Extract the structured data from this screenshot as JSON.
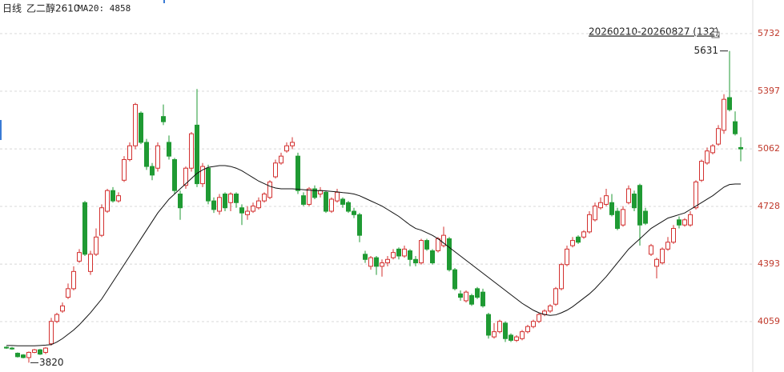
{
  "chart_data": {
    "type": "candlestick",
    "period": "日线",
    "symbol": "乙二醇2610",
    "indicator": "MA20: 4858",
    "range_label": "20260210-20260827 (132)",
    "up_color": "#d3302f",
    "down_color": "#1f9a33",
    "ma_color": "#111111",
    "ylim": [
      3766,
      5927
    ],
    "yticks": [
      4059,
      4393,
      4728,
      5062,
      5397,
      5732
    ],
    "grid": true,
    "max_index": 129,
    "min_index": 4,
    "open": [
      3910,
      3905,
      3875,
      3865,
      3850,
      3880,
      3895,
      3880,
      3930,
      4060,
      4120,
      4200,
      4250,
      4410,
      4750,
      4350,
      4450,
      4560,
      4700,
      4820,
      4760,
      4880,
      5000,
      5080,
      5270,
      5100,
      4960,
      4950,
      5250,
      5100,
      5000,
      4800,
      4850,
      4950,
      5200,
      4860,
      4950,
      4760,
      4700,
      4800,
      4750,
      4800,
      4720,
      4680,
      4700,
      4720,
      4760,
      4780,
      4900,
      4980,
      5050,
      5080,
      5020,
      4790,
      4740,
      4830,
      4800,
      4810,
      4700,
      4760,
      4770,
      4750,
      4700,
      4680,
      4450,
      4380,
      4430,
      4380,
      4400,
      4430,
      4480,
      4440,
      4470,
      4420,
      4400,
      4530,
      4470,
      4470,
      4500,
      4540,
      4360,
      4220,
      4180,
      4210,
      4250,
      4230,
      4100,
      3970,
      4000,
      4050,
      3980,
      3950,
      3960,
      4000,
      4030,
      4060,
      4100,
      4120,
      4160,
      4250,
      4390,
      4500,
      4550,
      4550,
      4580,
      4650,
      4720,
      4740,
      4750,
      4700,
      4620,
      4750,
      4800,
      4850,
      4700,
      4450,
      4380,
      4400,
      4480,
      4520,
      4650,
      4620,
      4620,
      4720,
      4880,
      4980,
      5040,
      5090,
      5170,
      5360,
      5220,
      5070
    ],
    "high": [
      3915,
      3912,
      3880,
      3870,
      3885,
      3900,
      3900,
      3910,
      4080,
      4110,
      4170,
      4280,
      4380,
      4480,
      4760,
      4470,
      4600,
      4740,
      4830,
      4840,
      4810,
      5020,
      5100,
      5330,
      5280,
      5120,
      4980,
      5100,
      5320,
      5140,
      5010,
      4820,
      4960,
      5160,
      5410,
      4980,
      4970,
      4780,
      4800,
      4810,
      4810,
      4810,
      4740,
      4730,
      4750,
      4780,
      4810,
      4880,
      5000,
      5040,
      5100,
      5130,
      5040,
      4810,
      4840,
      4850,
      4840,
      4820,
      4780,
      4830,
      4780,
      4760,
      4720,
      4690,
      4470,
      4440,
      4440,
      4420,
      4440,
      4480,
      4490,
      4500,
      4480,
      4440,
      4540,
      4540,
      4480,
      4550,
      4610,
      4550,
      4370,
      4240,
      4240,
      4220,
      4260,
      4250,
      4110,
      4050,
      4070,
      4060,
      3990,
      3980,
      4010,
      4040,
      4070,
      4110,
      4130,
      4160,
      4260,
      4400,
      4500,
      4550,
      4560,
      4590,
      4700,
      4750,
      4780,
      4830,
      4800,
      4720,
      4730,
      4850,
      4820,
      4860,
      4720,
      4510,
      4430,
      4490,
      4550,
      4620,
      4670,
      4660,
      4700,
      4880,
      5000,
      5070,
      5090,
      5200,
      5380,
      5631,
      5280,
      5130
    ],
    "low": [
      3900,
      3895,
      3850,
      3845,
      3820,
      3875,
      3865,
      3870,
      3920,
      4050,
      4110,
      4190,
      4240,
      4400,
      4440,
      4330,
      4440,
      4550,
      4690,
      4750,
      4750,
      4870,
      4990,
      5060,
      5090,
      4940,
      4880,
      4930,
      5200,
      5000,
      4800,
      4650,
      4830,
      4930,
      4840,
      4840,
      4740,
      4690,
      4680,
      4700,
      4700,
      4720,
      4620,
      4650,
      4690,
      4710,
      4750,
      4770,
      4890,
      4970,
      5040,
      5060,
      4800,
      4730,
      4730,
      4770,
      4780,
      4690,
      4690,
      4750,
      4720,
      4690,
      4660,
      4520,
      4400,
      4360,
      4330,
      4320,
      4380,
      4420,
      4420,
      4430,
      4380,
      4380,
      4390,
      4470,
      4390,
      4460,
      4490,
      4350,
      4240,
      4180,
      4170,
      4150,
      4190,
      4140,
      3960,
      3960,
      3990,
      3940,
      3940,
      3940,
      3950,
      3990,
      4020,
      4050,
      4090,
      4110,
      4150,
      4240,
      4380,
      4490,
      4510,
      4540,
      4570,
      4640,
      4710,
      4730,
      4670,
      4590,
      4610,
      4740,
      4700,
      4500,
      4620,
      4440,
      4310,
      4390,
      4470,
      4510,
      4600,
      4610,
      4610,
      4710,
      4870,
      4970,
      5030,
      5080,
      5150,
      5280,
      5140,
      4990
    ],
    "close": [
      3905,
      3900,
      3855,
      3850,
      3880,
      3895,
      3870,
      3905,
      4060,
      4100,
      4150,
      4250,
      4350,
      4460,
      4450,
      4450,
      4550,
      4720,
      4820,
      4760,
      4790,
      5000,
      5080,
      5320,
      5100,
      4960,
      4910,
      5080,
      5220,
      5020,
      4820,
      4720,
      4950,
      5150,
      4860,
      4960,
      4760,
      4710,
      4780,
      4720,
      4800,
      4750,
      4690,
      4700,
      4730,
      4760,
      4800,
      4870,
      4980,
      5020,
      5080,
      5100,
      4820,
      4740,
      4830,
      4780,
      4820,
      4700,
      4770,
      4810,
      4740,
      4700,
      4680,
      4560,
      4420,
      4430,
      4380,
      4400,
      4420,
      4460,
      4440,
      4480,
      4420,
      4400,
      4530,
      4480,
      4400,
      4540,
      4560,
      4360,
      4250,
      4200,
      4230,
      4160,
      4200,
      4150,
      3980,
      4000,
      4060,
      3960,
      3950,
      3970,
      4000,
      4030,
      4060,
      4100,
      4120,
      4150,
      4250,
      4390,
      4480,
      4530,
      4520,
      4580,
      4680,
      4730,
      4750,
      4790,
      4680,
      4600,
      4710,
      4830,
      4720,
      4620,
      4630,
      4500,
      4420,
      4480,
      4520,
      4600,
      4620,
      4650,
      4680,
      4870,
      4990,
      5050,
      5080,
      5180,
      5350,
      5290,
      5150,
      5062
    ],
    "ma20": [
      3920,
      3920,
      3918,
      3918,
      3918,
      3918,
      3920,
      3922,
      3925,
      3940,
      3960,
      3985,
      4010,
      4040,
      4075,
      4110,
      4150,
      4190,
      4240,
      4290,
      4340,
      4390,
      4440,
      4490,
      4540,
      4590,
      4640,
      4690,
      4730,
      4770,
      4800,
      4830,
      4860,
      4890,
      4920,
      4940,
      4955,
      4960,
      4965,
      4965,
      4960,
      4950,
      4935,
      4915,
      4895,
      4875,
      4860,
      4845,
      4835,
      4830,
      4830,
      4830,
      4828,
      4825,
      4822,
      4820,
      4820,
      4818,
      4815,
      4812,
      4808,
      4805,
      4800,
      4790,
      4775,
      4760,
      4745,
      4730,
      4710,
      4690,
      4670,
      4645,
      4620,
      4600,
      4590,
      4575,
      4560,
      4540,
      4515,
      4490,
      4465,
      4440,
      4415,
      4390,
      4365,
      4340,
      4315,
      4290,
      4265,
      4240,
      4215,
      4190,
      4165,
      4145,
      4125,
      4110,
      4100,
      4095,
      4098,
      4110,
      4125,
      4145,
      4170,
      4195,
      4220,
      4250,
      4285,
      4320,
      4360,
      4400,
      4440,
      4480,
      4510,
      4540,
      4570,
      4600,
      4620,
      4640,
      4660,
      4670,
      4680,
      4690,
      4710,
      4730,
      4750,
      4770,
      4790,
      4815,
      4840,
      4855,
      4858,
      4858
    ]
  }
}
